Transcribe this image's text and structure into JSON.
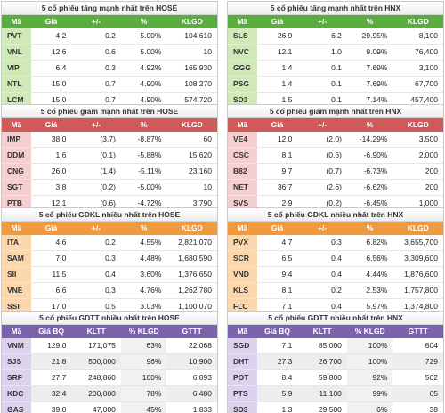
{
  "panels": [
    {
      "id": "hose_up",
      "theme": "green",
      "title": "5 cổ phiếu tăng mạnh nhất trên HOSE",
      "headers": [
        "Mã",
        "Giá",
        "+/-",
        "%",
        "KLGD"
      ],
      "rows": [
        [
          "PVT",
          "4.2",
          "0.2",
          "5.00%",
          "104,610"
        ],
        [
          "VNL",
          "12.6",
          "0.6",
          "5.00%",
          "10"
        ],
        [
          "VIP",
          "6.4",
          "0.3",
          "4.92%",
          "165,930"
        ],
        [
          "NTL",
          "15.0",
          "0.7",
          "4.90%",
          "108,270"
        ],
        [
          "LCM",
          "15.0",
          "0.7",
          "4.90%",
          "574,720"
        ]
      ]
    },
    {
      "id": "hnx_up",
      "theme": "green",
      "title": "5 cổ phiếu tăng mạnh nhất trên HNX",
      "headers": [
        "Mã",
        "Giá",
        "+/-",
        "%",
        "KLGD"
      ],
      "rows": [
        [
          "SLS",
          "26.9",
          "6.2",
          "29.95%",
          "8,100"
        ],
        [
          "NVC",
          "12.1",
          "1.0",
          "9.09%",
          "76,400"
        ],
        [
          "GGG",
          "1.4",
          "0.1",
          "7.69%",
          "3,100"
        ],
        [
          "PSG",
          "1.4",
          "0.1",
          "7.69%",
          "67,700"
        ],
        [
          "SD3",
          "1.5",
          "0.1",
          "7.14%",
          "457,400"
        ]
      ]
    },
    {
      "id": "hose_down",
      "theme": "red",
      "title": "5 cổ phiếu giảm mạnh nhất trên HOSE",
      "headers": [
        "Mã",
        "Giá",
        "+/-",
        "%",
        "KLGD"
      ],
      "rows": [
        [
          "IMP",
          "38.0",
          "(3.7)",
          "-8.87%",
          "60"
        ],
        [
          "DDM",
          "1.6",
          "(0.1)",
          "-5.88%",
          "15,620"
        ],
        [
          "CNG",
          "26.0",
          "(1.4)",
          "-5.11%",
          "23,160"
        ],
        [
          "SGT",
          "3.8",
          "(0.2)",
          "-5.00%",
          "10"
        ],
        [
          "PTB",
          "12.1",
          "(0.6)",
          "-4.72%",
          "3,790"
        ]
      ]
    },
    {
      "id": "hnx_down",
      "theme": "red",
      "title": "5 cổ phiếu giảm mạnh nhất trên HNX",
      "headers": [
        "Mã",
        "Giá",
        "+/-",
        "%",
        "KLGD"
      ],
      "rows": [
        [
          "VE4",
          "12.0",
          "(2.0)",
          "-14.29%",
          "3,500"
        ],
        [
          "CSC",
          "8.1",
          "(0.6)",
          "-6.90%",
          "2,000"
        ],
        [
          "B82",
          "9.7",
          "(0.7)",
          "-6.73%",
          "200"
        ],
        [
          "NET",
          "36.7",
          "(2.6)",
          "-6.62%",
          "200"
        ],
        [
          "SVS",
          "2.9",
          "(0.2)",
          "-6.45%",
          "1,000"
        ]
      ]
    },
    {
      "id": "hose_vol",
      "theme": "orange",
      "title": "5 cổ phiếu GDKL nhiều nhất trên HOSE",
      "headers": [
        "Mã",
        "Giá",
        "+/-",
        "%",
        "KLGD"
      ],
      "rows": [
        [
          "ITA",
          "4.6",
          "0.2",
          "4.55%",
          "2,821,070"
        ],
        [
          "SAM",
          "7.0",
          "0.3",
          "4.48%",
          "1,680,590"
        ],
        [
          "SII",
          "11.5",
          "0.4",
          "3.60%",
          "1,376,650"
        ],
        [
          "VNE",
          "6.6",
          "0.3",
          "4.76%",
          "1,262,780"
        ],
        [
          "SSI",
          "17.0",
          "0.5",
          "3.03%",
          "1,100,070"
        ]
      ]
    },
    {
      "id": "hnx_vol",
      "theme": "orange",
      "title": "5 cổ phiếu GDKL nhiều nhất trên HNX",
      "headers": [
        "Mã",
        "Giá",
        "+/-",
        "%",
        "KLGD"
      ],
      "rows": [
        [
          "PVX",
          "4.7",
          "0.3",
          "6.82%",
          "3,655,700"
        ],
        [
          "SCR",
          "6.5",
          "0.4",
          "6.56%",
          "3,309,600"
        ],
        [
          "VND",
          "9.4",
          "0.4",
          "4.44%",
          "1,876,600"
        ],
        [
          "KLS",
          "8.1",
          "0.2",
          "2.53%",
          "1,757,800"
        ],
        [
          "FLC",
          "7.1",
          "0.4",
          "5.97%",
          "1,374,800"
        ]
      ]
    },
    {
      "id": "hose_val",
      "theme": "purple",
      "title": "5 cổ phiếu GDTT nhiều nhất trên HOSE",
      "headers": [
        "Mã",
        "Giá BQ",
        "KLTT",
        "% KLGD",
        "GTTT"
      ],
      "rows": [
        [
          "VNM",
          "129.0",
          "171,075",
          "63%",
          "22,068"
        ],
        [
          "SJS",
          "21.8",
          "500,000",
          "96%",
          "10,900"
        ],
        [
          "SRF",
          "27.7",
          "248,860",
          "100%",
          "6,893"
        ],
        [
          "KDC",
          "32.4",
          "200,000",
          "78%",
          "6,480"
        ],
        [
          "GAS",
          "39.0",
          "47,000",
          "45%",
          "1,833"
        ]
      ]
    },
    {
      "id": "hnx_val",
      "theme": "purple",
      "title": "5 cổ phiếu GDTT nhiều nhất trên HNX",
      "headers": [
        "Mã",
        "Giá BQ",
        "KLTT",
        "% KLGD",
        "GTTT"
      ],
      "rows": [
        [
          "SGD",
          "7.1",
          "85,000",
          "100%",
          "604"
        ],
        [
          "DHT",
          "27.3",
          "26,700",
          "100%",
          "729"
        ],
        [
          "POT",
          "8.4",
          "59,800",
          "92%",
          "502"
        ],
        [
          "PTS",
          "5.9",
          "11,100",
          "99%",
          "65"
        ],
        [
          "SD3",
          "1.3",
          "29,500",
          "6%",
          "38"
        ]
      ]
    }
  ]
}
